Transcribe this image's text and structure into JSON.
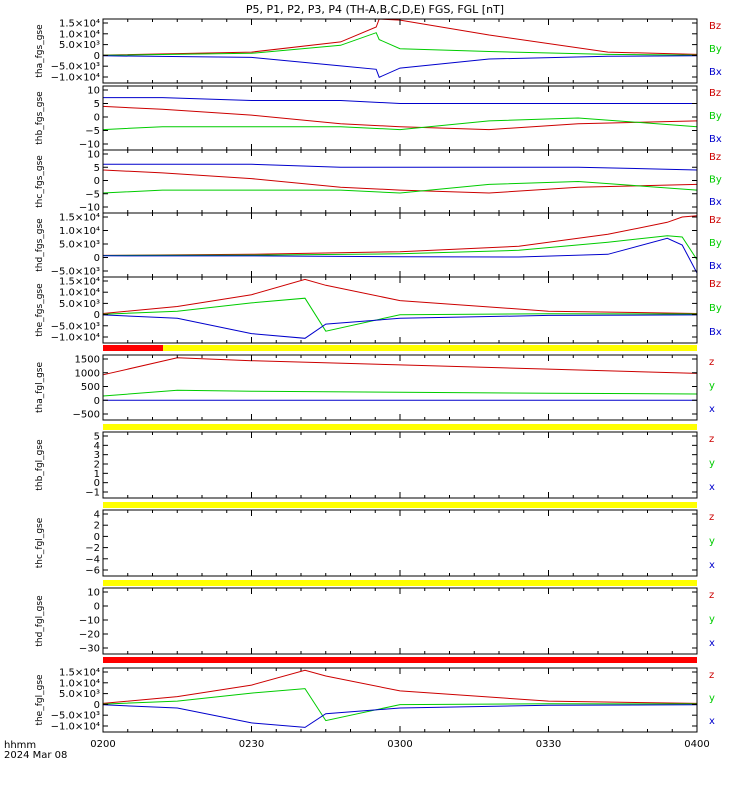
{
  "title": "P5, P1, P2, P3, P4 (TH-A,B,C,D,E) FGS, FGL [nT]",
  "xaxis": {
    "unit_label": "hhmm",
    "date_label": "2024 Mar 08",
    "ticks": [
      "0200",
      "0230",
      "0300",
      "0330",
      "0400"
    ]
  },
  "colors": {
    "x": "#0000cc",
    "y": "#00cc00",
    "z": "#cc0000",
    "bar_yellow": "#ffff00",
    "bar_red": "#ff0000"
  },
  "chart_data": [
    {
      "type": "line",
      "ylabel": "tha_fgs_gse",
      "yticks": [
        "1.5×10⁴",
        "1.0×10⁴",
        "5.0×10³",
        "0",
        "−5.0×10³",
        "−1.0×10⁴"
      ],
      "ylim": [
        -12000,
        16000
      ],
      "legend": [
        "Bz",
        "By",
        "Bx"
      ],
      "x_hours": [
        2.0,
        2.5,
        2.8,
        2.92,
        2.93,
        3.0,
        3.3,
        3.7,
        4.0
      ],
      "series": [
        {
          "name": "Bz",
          "values": [
            200,
            1500,
            6000,
            12500,
            16000,
            15500,
            9000,
            1500,
            500
          ]
        },
        {
          "name": "By",
          "values": [
            100,
            1000,
            4500,
            10000,
            7000,
            3000,
            1800,
            500,
            200
          ]
        },
        {
          "name": "Bx",
          "values": [
            -100,
            -800,
            -4500,
            -6000,
            -9500,
            -5500,
            -1500,
            -300,
            -100
          ]
        }
      ]
    },
    {
      "type": "line",
      "ylabel": "thb_fgs_gse",
      "yticks": [
        "10",
        "5",
        "0",
        "−5",
        "−10"
      ],
      "ylim": [
        -11,
        11
      ],
      "legend": [
        "Bz",
        "By",
        "Bx"
      ],
      "x_hours": [
        2.0,
        2.2,
        2.5,
        2.8,
        3.0,
        3.3,
        3.6,
        4.0
      ],
      "series": [
        {
          "name": "Bz",
          "values": [
            4,
            3,
            1,
            -2,
            -3,
            -4,
            -2,
            -1
          ]
        },
        {
          "name": "By",
          "values": [
            -4,
            -3,
            -3,
            -3,
            -4,
            -1,
            0,
            -3
          ]
        },
        {
          "name": "Bx",
          "values": [
            7,
            7,
            6,
            6,
            5,
            5,
            5,
            5
          ]
        }
      ]
    },
    {
      "type": "line",
      "ylabel": "thc_fgs_gse",
      "yticks": [
        "10",
        "5",
        "0",
        "−5",
        "−10"
      ],
      "ylim": [
        -11,
        11
      ],
      "legend": [
        "Bz",
        "By",
        "Bx"
      ],
      "x_hours": [
        2.0,
        2.2,
        2.5,
        2.8,
        3.0,
        3.3,
        3.6,
        4.0
      ],
      "series": [
        {
          "name": "Bz",
          "values": [
            4,
            3,
            1,
            -2,
            -3,
            -4,
            -2,
            -1
          ]
        },
        {
          "name": "By",
          "values": [
            -4,
            -3,
            -3,
            -3,
            -4,
            -1,
            0,
            -3
          ]
        },
        {
          "name": "Bx",
          "values": [
            6,
            6,
            6,
            5,
            5,
            5,
            5,
            4
          ]
        }
      ]
    },
    {
      "type": "line",
      "ylabel": "thd_fgs_gse",
      "yticks": [
        "1.5×10⁴",
        "1.0×10⁴",
        "5.0×10³",
        "0",
        "−5.0×10³"
      ],
      "ylim": [
        -8000,
        16000
      ],
      "legend": [
        "Bz",
        "By",
        "Bx"
      ],
      "x_hours": [
        2.0,
        2.5,
        3.0,
        3.4,
        3.7,
        3.9,
        3.95,
        4.0
      ],
      "series": [
        {
          "name": "Bz",
          "values": [
            100,
            500,
            1500,
            3500,
            8000,
            12500,
            14500,
            15000
          ]
        },
        {
          "name": "By",
          "values": [
            50,
            200,
            700,
            2000,
            5000,
            7500,
            7000,
            -1500
          ]
        },
        {
          "name": "Bx",
          "values": [
            -50,
            -100,
            -400,
            -500,
            500,
            6500,
            4000,
            -6500
          ]
        }
      ]
    },
    {
      "type": "line",
      "ylabel": "the_fgs_gse",
      "yticks": [
        "1.5×10⁴",
        "1.0×10⁴",
        "5.0×10³",
        "0",
        "−5.0×10³",
        "−1.0×10⁴"
      ],
      "ylim": [
        -12000,
        16000
      ],
      "legend": [
        "Bz",
        "By",
        "Bx"
      ],
      "x_hours": [
        2.0,
        2.25,
        2.5,
        2.68,
        2.75,
        3.0,
        3.5,
        4.0
      ],
      "series": [
        {
          "name": "Bz",
          "values": [
            500,
            3500,
            8500,
            15000,
            12500,
            6000,
            1500,
            500
          ]
        },
        {
          "name": "By",
          "values": [
            200,
            1500,
            5000,
            7000,
            -7000,
            0,
            400,
            300
          ]
        },
        {
          "name": "Bx",
          "values": [
            -100,
            -1500,
            -8000,
            -10000,
            -4000,
            -1500,
            -300,
            -100
          ]
        }
      ]
    },
    {
      "type": "line",
      "ylabel": "tha_fgl_gse",
      "yticks": [
        "1500",
        "1000",
        "500",
        "0",
        "−500"
      ],
      "ylim": [
        -700,
        1600
      ],
      "legend": [
        "z",
        "y",
        "x"
      ],
      "x_hours": [
        2.0,
        2.25,
        2.5,
        3.0,
        3.5,
        4.0
      ],
      "series": [
        {
          "name": "z",
          "values": [
            900,
            1500,
            1400,
            1250,
            1100,
            950
          ]
        },
        {
          "name": "y",
          "values": [
            150,
            350,
            320,
            280,
            250,
            220
          ]
        },
        {
          "name": "x",
          "values": [
            0,
            0,
            0,
            0,
            0,
            0
          ]
        }
      ]
    },
    {
      "type": "line",
      "ylabel": "thb_fgl_gse",
      "yticks": [
        "5",
        "4",
        "3",
        "2",
        "1",
        "0",
        "−1"
      ],
      "ylim": [
        -1.4,
        5.3
      ],
      "legend": [
        "z",
        "y",
        "x"
      ],
      "x_hours": [],
      "series": []
    },
    {
      "type": "line",
      "ylabel": "thc_fgl_gse",
      "yticks": [
        "4",
        "2",
        "0",
        "−2",
        "−4",
        "−6"
      ],
      "ylim": [
        -7,
        5
      ],
      "legend": [
        "z",
        "y",
        "x"
      ],
      "x_hours": [],
      "series": []
    },
    {
      "type": "line",
      "ylabel": "thd_fgl_gse",
      "yticks": [
        "10",
        "0",
        "−10",
        "−20",
        "−30"
      ],
      "ylim": [
        -34,
        13
      ],
      "legend": [
        "z",
        "y",
        "x"
      ],
      "x_hours": [],
      "series": []
    },
    {
      "type": "line",
      "ylabel": "the_fgl_gse",
      "yticks": [
        "1.5×10⁴",
        "1.0×10⁴",
        "5.0×10³",
        "0",
        "−5.0×10³",
        "−1.0×10⁴"
      ],
      "ylim": [
        -12000,
        16000
      ],
      "legend": [
        "z",
        "y",
        "x"
      ],
      "x_hours": [
        2.0,
        2.25,
        2.5,
        2.68,
        2.75,
        3.0,
        3.5,
        4.0
      ],
      "series": [
        {
          "name": "z",
          "values": [
            500,
            3500,
            8500,
            15000,
            12500,
            6000,
            1500,
            500
          ]
        },
        {
          "name": "y",
          "values": [
            200,
            1500,
            5000,
            7000,
            -7000,
            0,
            400,
            300
          ]
        },
        {
          "name": "x",
          "values": [
            -100,
            -1500,
            -8000,
            -10000,
            -4000,
            -1500,
            -300,
            -100
          ]
        }
      ]
    }
  ]
}
